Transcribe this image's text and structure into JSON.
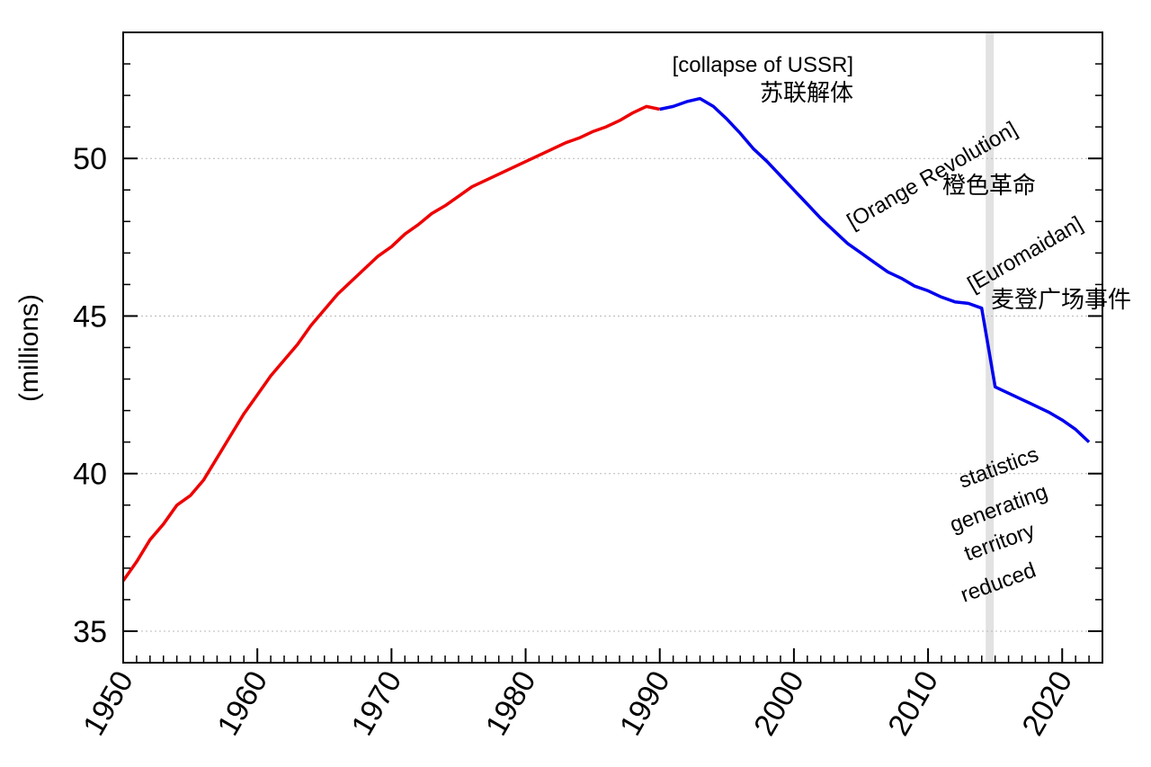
{
  "chart_data": {
    "type": "line",
    "title": "",
    "xlabel": "",
    "ylabel": "(millions)",
    "xlim": [
      1950,
      2023
    ],
    "ylim": [
      34,
      54
    ],
    "x_ticks": [
      "1950",
      "1960",
      "1970",
      "1980",
      "1990",
      "2000",
      "2010",
      "2020"
    ],
    "y_ticks": [
      "35",
      "40",
      "45",
      "50"
    ],
    "grid": "horizontal dotted at major y ticks",
    "series": [
      {
        "name": "Soviet era",
        "color": "#ee0000",
        "x": [
          1950,
          1951,
          1952,
          1953,
          1954,
          1955,
          1956,
          1957,
          1958,
          1959,
          1960,
          1961,
          1962,
          1963,
          1964,
          1965,
          1966,
          1967,
          1968,
          1969,
          1970,
          1971,
          1972,
          1973,
          1974,
          1975,
          1976,
          1977,
          1978,
          1979,
          1980,
          1981,
          1982,
          1983,
          1984,
          1985,
          1986,
          1987,
          1988,
          1989,
          1990
        ],
        "values": [
          36.6,
          37.2,
          37.9,
          38.4,
          39.0,
          39.3,
          39.8,
          40.5,
          41.2,
          41.9,
          42.5,
          43.1,
          43.6,
          44.1,
          44.7,
          45.2,
          45.7,
          46.1,
          46.5,
          46.9,
          47.2,
          47.6,
          47.9,
          48.25,
          48.5,
          48.8,
          49.1,
          49.3,
          49.5,
          49.7,
          49.9,
          50.1,
          50.3,
          50.5,
          50.65,
          50.85,
          51.0,
          51.2,
          51.45,
          51.65,
          51.56
        ]
      },
      {
        "name": "Independent Ukraine",
        "color": "#0000ee",
        "x": [
          1990,
          1991,
          1992,
          1993,
          1994,
          1995,
          1996,
          1997,
          1998,
          1999,
          2000,
          2001,
          2002,
          2003,
          2004,
          2005,
          2006,
          2007,
          2008,
          2009,
          2010,
          2011,
          2012,
          2013,
          2014,
          2015,
          2016,
          2017,
          2018,
          2019,
          2020,
          2021,
          2022
        ],
        "values": [
          51.56,
          51.65,
          51.8,
          51.9,
          51.65,
          51.25,
          50.8,
          50.3,
          49.9,
          49.45,
          49.0,
          48.55,
          48.1,
          47.7,
          47.3,
          47.0,
          46.7,
          46.4,
          46.2,
          45.95,
          45.8,
          45.6,
          45.45,
          45.4,
          45.25,
          42.75,
          42.55,
          42.35,
          42.15,
          41.95,
          41.7,
          41.4,
          41.0
        ]
      }
    ],
    "shaded_band": {
      "x_start": 2014.3,
      "x_end": 2014.9,
      "color": "#e2e2e2"
    },
    "annotations": [
      {
        "id": "ussr-en",
        "text": "[collapse of USSR]"
      },
      {
        "id": "ussr-cn",
        "text": "苏联解体"
      },
      {
        "id": "orange-en",
        "text": "[Orange Revolution]"
      },
      {
        "id": "orange-cn",
        "text": "橙色革命"
      },
      {
        "id": "euromaidan-en",
        "text": "[Euromaidan]"
      },
      {
        "id": "euromaidan-cn",
        "text": "麦登广场事件"
      },
      {
        "id": "stat-1",
        "text": "statistics"
      },
      {
        "id": "stat-2",
        "text": "generating"
      },
      {
        "id": "stat-3",
        "text": "territory"
      },
      {
        "id": "stat-4",
        "text": "reduced"
      }
    ]
  }
}
